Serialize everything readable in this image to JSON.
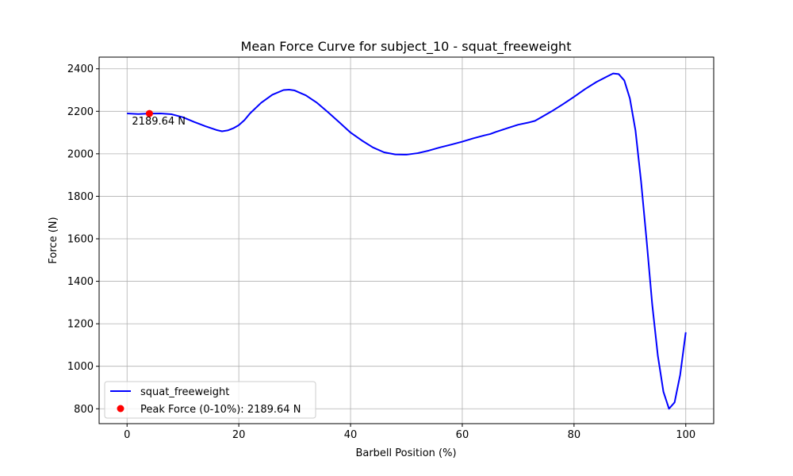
{
  "chart_data": {
    "type": "line",
    "title": "Mean Force Curve for subject_10 - squat_freeweight",
    "xlabel": "Barbell Position (%)",
    "ylabel": "Force (N)",
    "xlim": [
      -5,
      105
    ],
    "ylim": [
      730,
      2455
    ],
    "xticks": [
      0,
      20,
      40,
      60,
      80,
      100
    ],
    "yticks": [
      800,
      1000,
      1200,
      1400,
      1600,
      1800,
      2000,
      2200,
      2400
    ],
    "grid": true,
    "legend_position": "lower-left",
    "series": [
      {
        "name": "squat_freeweight",
        "color": "#0000ff",
        "x": [
          0,
          2,
          4,
          6,
          8,
          10,
          12,
          14,
          16,
          17,
          18,
          19,
          20,
          21,
          22,
          24,
          26,
          28,
          29,
          30,
          32,
          34,
          36,
          38,
          40,
          42,
          44,
          46,
          48,
          50,
          52,
          54,
          56,
          58,
          60,
          62,
          64,
          65,
          66,
          68,
          70,
          72,
          73,
          74,
          76,
          78,
          80,
          82,
          84,
          86,
          87,
          88,
          89,
          90,
          91,
          92,
          93,
          94,
          95,
          96,
          97,
          98,
          99,
          100
        ],
        "y": [
          2190,
          2187,
          2189.64,
          2190,
          2186,
          2172,
          2150,
          2130,
          2112,
          2106,
          2110,
          2120,
          2135,
          2158,
          2190,
          2240,
          2278,
          2300,
          2302,
          2298,
          2275,
          2240,
          2195,
          2148,
          2100,
          2063,
          2030,
          2007,
          1997,
          1996,
          2003,
          2015,
          2030,
          2043,
          2057,
          2073,
          2087,
          2093,
          2103,
          2120,
          2137,
          2148,
          2155,
          2170,
          2200,
          2233,
          2268,
          2305,
          2338,
          2365,
          2378,
          2375,
          2345,
          2260,
          2110,
          1870,
          1590,
          1290,
          1050,
          880,
          800,
          830,
          960,
          1160
        ]
      }
    ],
    "peak": {
      "label": "Peak Force (0-10%): 2189.64 N",
      "annotation": "2189.64 N",
      "x": 4,
      "y": 2189.64,
      "color": "#ff0000"
    }
  }
}
